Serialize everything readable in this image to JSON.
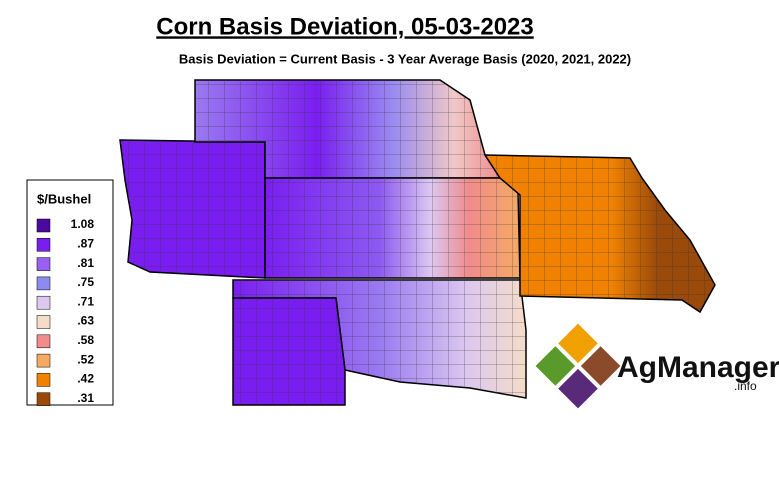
{
  "title": "Corn Basis Deviation, 05-03-2023",
  "subtitle": "Basis Deviation = Current Basis - 3 Year Average Basis (2020, 2021, 2022)",
  "legend": {
    "title": "$/Bushel",
    "items": [
      {
        "label": "1.08",
        "color": "#4a0a9e"
      },
      {
        "label": ".87",
        "color": "#7a1ef0"
      },
      {
        "label": ".81",
        "color": "#9a5ef0"
      },
      {
        "label": ".75",
        "color": "#8c8cf0"
      },
      {
        "label": ".71",
        "color": "#dcc8f0"
      },
      {
        "label": ".63",
        "color": "#f5dcc8"
      },
      {
        "label": ".58",
        "color": "#f08c8c"
      },
      {
        "label": ".52",
        "color": "#f5aa64"
      },
      {
        "label": ".42",
        "color": "#f08200"
      },
      {
        "label": ".31",
        "color": "#9a4a0a"
      }
    ]
  },
  "logo": {
    "name": "AgManager",
    "suffix": ".info"
  }
}
